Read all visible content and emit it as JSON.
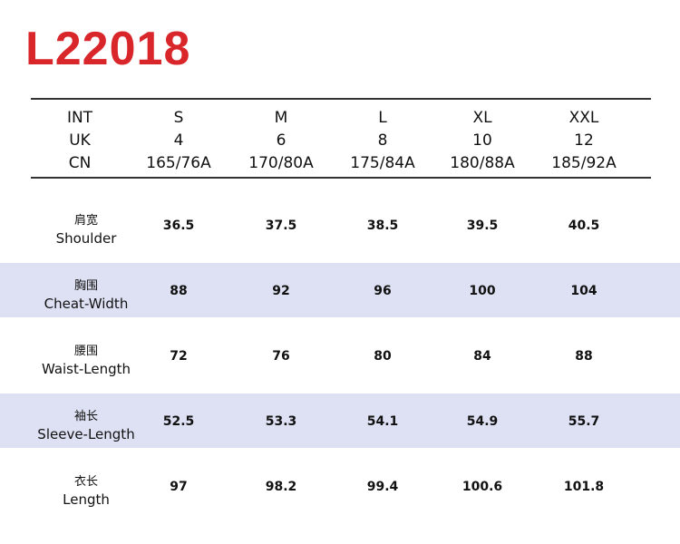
{
  "title": "L22018",
  "header": {
    "rows": [
      {
        "label": "INT",
        "values": [
          "S",
          "M",
          "L",
          "XL",
          "XXL"
        ]
      },
      {
        "label": "UK",
        "values": [
          "4",
          "6",
          "8",
          "10",
          "12"
        ]
      },
      {
        "label": "CN",
        "values": [
          "165/76A",
          "170/80A",
          "175/84A",
          "180/88A",
          "185/92A"
        ]
      }
    ]
  },
  "measurements": [
    {
      "label_cn": "肩宽",
      "label_en": "Shoulder",
      "values": [
        "36.5",
        "37.5",
        "38.5",
        "39.5",
        "40.5"
      ]
    },
    {
      "label_cn": "胸围",
      "label_en": "Cheat-Width",
      "values": [
        "88",
        "92",
        "96",
        "100",
        "104"
      ]
    },
    {
      "label_cn": "腰围",
      "label_en": "Waist-Length",
      "values": [
        "72",
        "76",
        "80",
        "84",
        "88"
      ]
    },
    {
      "label_cn": "袖长",
      "label_en": "Sleeve-Length",
      "values": [
        "52.5",
        "53.3",
        "54.1",
        "54.9",
        "55.7"
      ]
    },
    {
      "label_cn": "衣长",
      "label_en": "Length",
      "values": [
        "97",
        "98.2",
        "99.4",
        "100.6",
        "101.8"
      ]
    }
  ],
  "colors": {
    "title": "#d9262b",
    "shade": "#dde1f3"
  }
}
